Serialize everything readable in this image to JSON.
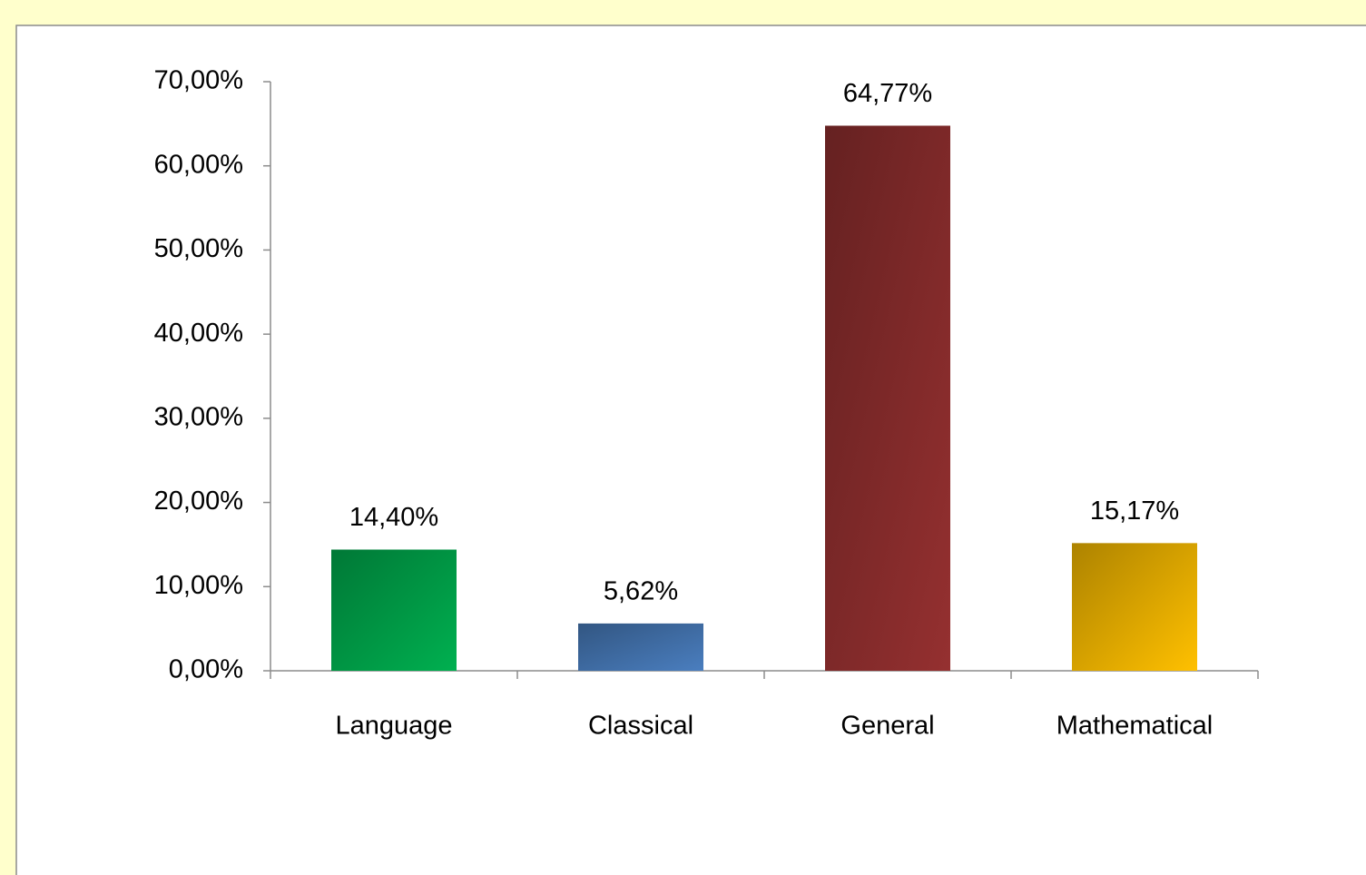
{
  "chart_data": {
    "type": "bar",
    "categories": [
      "Language",
      "Classical",
      "General",
      "Mathematical"
    ],
    "values": [
      14.4,
      5.62,
      64.77,
      15.17
    ],
    "value_labels": [
      "14,40%",
      "5,62%",
      "64,77%",
      "15,17%"
    ],
    "colors": [
      "#00b050",
      "#4a7ebf",
      "#953030",
      "#ffc000"
    ],
    "ylim": [
      0,
      70
    ],
    "yticks": [
      {
        "value": 0,
        "label": "0,00%"
      },
      {
        "value": 10,
        "label": "10,00%"
      },
      {
        "value": 20,
        "label": "20,00%"
      },
      {
        "value": 30,
        "label": "30,00%"
      },
      {
        "value": 40,
        "label": "40,00%"
      },
      {
        "value": 50,
        "label": "50,00%"
      },
      {
        "value": 60,
        "label": "60,00%"
      },
      {
        "value": 70,
        "label": "70,00%"
      }
    ],
    "grid": false
  }
}
